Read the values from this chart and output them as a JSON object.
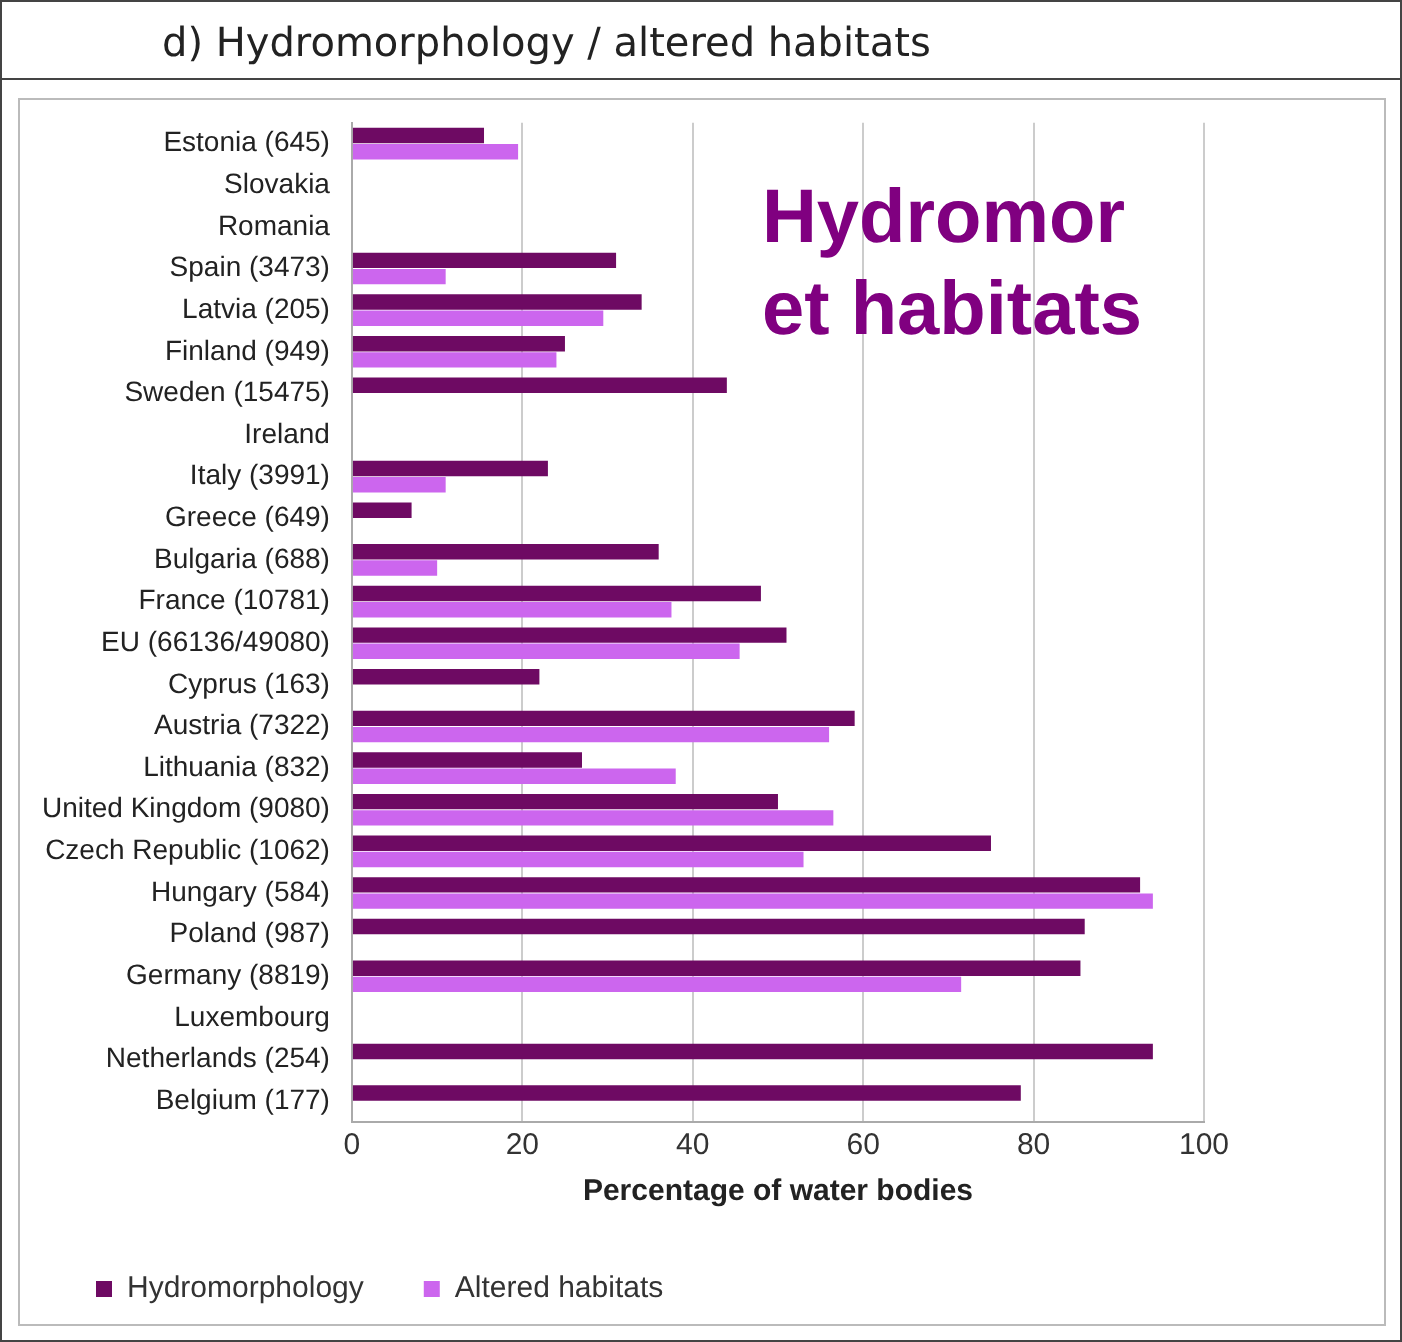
{
  "chart_data": {
    "type": "bar",
    "orientation": "horizontal",
    "title": "d)    Hydromorphology / altered habitats",
    "xlabel": "Percentage of water bodies",
    "categories": [
      "Estonia (645)",
      "Slovakia",
      "Romania",
      "Spain (3473)",
      "Latvia (205)",
      "Finland (949)",
      "Sweden (15475)",
      "Ireland",
      "Italy (3991)",
      "Greece (649)",
      "Bulgaria (688)",
      "France (10781)",
      "EU (66136/49080)",
      "Cyprus (163)",
      "Austria (7322)",
      "Lithuania (832)",
      "United Kingdom (9080)",
      "Czech Republic (1062)",
      "Hungary (584)",
      "Poland (987)",
      "Germany (8819)",
      "Luxembourg",
      "Netherlands (254)",
      "Belgium (177)"
    ],
    "series": [
      {
        "name": "Hydromorphology",
        "color": "#6e0a63",
        "values": [
          15.5,
          null,
          null,
          31,
          34,
          25,
          44,
          null,
          23,
          7,
          36,
          48,
          51,
          22,
          59,
          27,
          50,
          75,
          92.5,
          86,
          85.5,
          null,
          94,
          78.5
        ]
      },
      {
        "name": "Altered habitats",
        "color": "#cc66ee",
        "values": [
          19.5,
          null,
          null,
          11,
          29.5,
          24,
          null,
          null,
          11,
          null,
          10,
          37.5,
          45.5,
          null,
          56,
          38,
          56.5,
          53,
          94,
          null,
          71.5,
          null,
          null,
          null
        ]
      }
    ],
    "xlim": [
      0,
      100
    ],
    "xticks": [
      0,
      20,
      40,
      60,
      80,
      100
    ],
    "grid": "x",
    "legend": "bottom",
    "annotations": [
      "Hydromor",
      "et habitats"
    ]
  }
}
